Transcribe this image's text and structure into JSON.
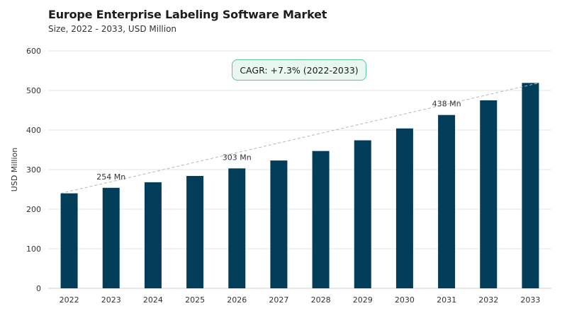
{
  "header": {
    "title": "Europe Enterprise Labeling Software Market",
    "subtitle": "Size, 2022 - 2033, USD Million"
  },
  "cagr_label": "CAGR: +7.3% (2022-2033)",
  "colors": {
    "bar": "#023e5a",
    "trend": "#b5b5b5",
    "cagr_border": "#5cc39a",
    "cagr_fill": "#eaf7f1"
  },
  "chart_data": {
    "type": "bar",
    "ylabel": "USD Million",
    "xlabel": "",
    "ylim": [
      0,
      600
    ],
    "yticks": [
      0,
      100,
      200,
      300,
      400,
      500,
      600
    ],
    "grid": true,
    "categories": [
      "2022",
      "2023",
      "2024",
      "2025",
      "2026",
      "2027",
      "2028",
      "2029",
      "2030",
      "2031",
      "2032",
      "2033"
    ],
    "values": [
      240,
      254,
      268,
      284,
      303,
      323,
      347,
      374,
      404,
      438,
      475,
      519
    ],
    "data_labels": [
      {
        "category": "2023",
        "text": "254 Mn"
      },
      {
        "category": "2026",
        "text": "303 Mn"
      },
      {
        "category": "2031",
        "text": "438 Mn"
      }
    ],
    "trendline": {
      "from": "2022",
      "to": "2033",
      "style": "dashed"
    }
  }
}
